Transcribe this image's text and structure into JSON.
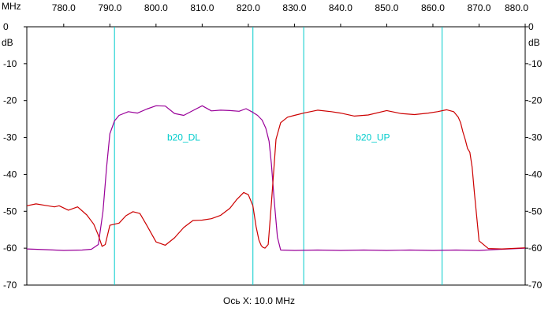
{
  "chart_data": {
    "type": "line",
    "x_unit": "MHz",
    "y_unit": "dB",
    "xlim": [
      772,
      880
    ],
    "ylim": [
      -70,
      0
    ],
    "x_ticks": [
      780,
      790,
      800,
      810,
      820,
      830,
      840,
      850,
      860,
      870,
      880
    ],
    "x_tick_labels": [
      "780.0",
      "790.0",
      "800.0",
      "810.0",
      "820.0",
      "830.0",
      "840.0",
      "850.0",
      "860.0",
      "870.0",
      "880.0"
    ],
    "y_ticks": [
      0,
      -10,
      -20,
      -30,
      -40,
      -50,
      -60,
      -70
    ],
    "y_tick_labels": [
      "0",
      "-10",
      "-20",
      "-30",
      "-40",
      "-50",
      "-60",
      "-70"
    ],
    "grid": false,
    "xlabel": "Ось X: 10.0 MHz",
    "markers": [
      791.0,
      821.0,
      832.0,
      862.0
    ],
    "band_labels": [
      {
        "text": "b20_DL",
        "x": 806,
        "y": -30
      },
      {
        "text": "b20_UP",
        "x": 847,
        "y": -30
      }
    ],
    "series": [
      {
        "color": "#990099",
        "x": [
          772,
          776,
          780,
          784,
          786,
          787.5,
          788.5,
          789.3,
          790,
          791,
          792,
          794,
          796,
          798,
          800,
          802,
          804,
          806,
          808,
          810,
          812,
          814,
          816,
          818,
          819.5,
          821,
          822,
          823,
          823.8,
          824.5,
          825,
          825.6,
          826.3,
          827,
          830,
          835,
          840,
          845,
          850,
          855,
          860,
          865,
          870,
          875,
          880
        ],
        "y": [
          -60.2,
          -60.4,
          -60.6,
          -60.5,
          -60.3,
          -59.0,
          -50.0,
          -38.0,
          -29.0,
          -25.5,
          -24.0,
          -23.0,
          -23.4,
          -22.3,
          -21.4,
          -21.5,
          -23.5,
          -24.0,
          -22.7,
          -21.4,
          -22.8,
          -22.6,
          -22.7,
          -22.9,
          -22.2,
          -23.2,
          -24.0,
          -25.3,
          -27.5,
          -31.0,
          -37.0,
          -47.0,
          -57.0,
          -60.5,
          -60.6,
          -60.5,
          -60.6,
          -60.5,
          -60.6,
          -60.5,
          -60.6,
          -60.5,
          -60.6,
          -60.3,
          -60.0
        ]
      },
      {
        "color": "#cc0000",
        "x": [
          772,
          774,
          776,
          778,
          779,
          781,
          783,
          785,
          786.5,
          787.5,
          788.3,
          789,
          790,
          792,
          793.5,
          795,
          796.5,
          798,
          800,
          802,
          804,
          806,
          808,
          810,
          812,
          814,
          816,
          817.5,
          819,
          820,
          821,
          821.7,
          822.3,
          822.8,
          823.2,
          823.6,
          824.3,
          825,
          826,
          827,
          828.5,
          830,
          832,
          835,
          838,
          840,
          843,
          846,
          850,
          853,
          856,
          859,
          861,
          863,
          864.5,
          865.5,
          866,
          866.5,
          867,
          867.5,
          868,
          868.5,
          869,
          870,
          872,
          875,
          880
        ],
        "y": [
          -48.5,
          -48.0,
          -48.4,
          -48.8,
          -48.5,
          -49.7,
          -48.8,
          -51.0,
          -53.5,
          -56.5,
          -59.5,
          -59.0,
          -53.8,
          -53.2,
          -51.2,
          -50.1,
          -50.6,
          -53.8,
          -58.3,
          -59.2,
          -57.2,
          -54.4,
          -52.5,
          -52.4,
          -52.0,
          -51.1,
          -49.2,
          -46.8,
          -44.9,
          -45.5,
          -48.5,
          -54.2,
          -57.8,
          -59.3,
          -59.8,
          -60.0,
          -59.0,
          -48.0,
          -30.5,
          -26.0,
          -24.5,
          -24.0,
          -23.4,
          -22.6,
          -23.0,
          -23.4,
          -24.2,
          -23.9,
          -22.7,
          -23.5,
          -23.8,
          -23.4,
          -23.0,
          -22.5,
          -23.0,
          -24.5,
          -26.0,
          -28.5,
          -30.5,
          -33.0,
          -34.0,
          -38.0,
          -45.0,
          -58.0,
          -60.1,
          -60.2,
          -59.9
        ]
      }
    ]
  }
}
